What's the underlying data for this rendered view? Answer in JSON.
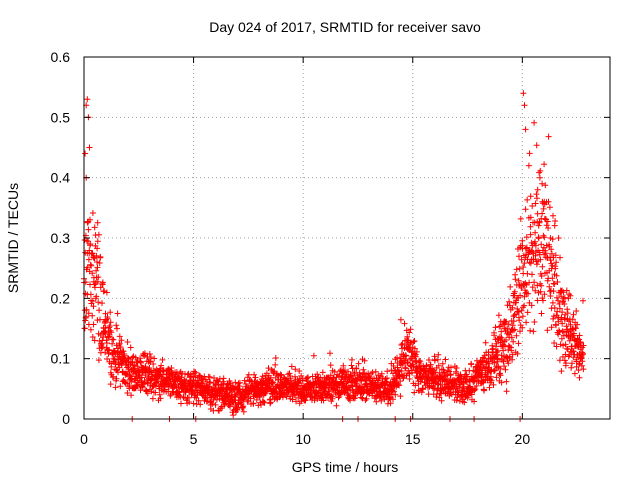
{
  "chart_data": {
    "type": "scatter",
    "title": "Day 024 of 2017, SRMTID for receiver savo",
    "xlabel": "GPS time / hours",
    "ylabel": "SRMTID / TECUs",
    "xlim": [
      0,
      24
    ],
    "ylim": [
      0,
      0.6
    ],
    "grid": true,
    "marker": "+",
    "color": "#ff0000",
    "x_ticks": [
      0,
      5,
      10,
      15,
      20
    ],
    "x_tick_labels": [
      "0",
      "5",
      "10",
      "15",
      "20"
    ],
    "y_ticks": [
      0,
      0.1,
      0.2,
      0.3,
      0.4,
      0.5,
      0.6
    ],
    "y_tick_labels": [
      "0",
      "0.1",
      "0.2",
      "0.3",
      "0.4",
      "0.5",
      "0.6"
    ],
    "series": [
      {
        "name": "SRMTID",
        "trend": {
          "x": [
            0.0,
            0.2,
            0.5,
            1.0,
            1.5,
            2.0,
            3.0,
            4.0,
            5.0,
            6.0,
            7.0,
            8.0,
            9.0,
            10.0,
            11.0,
            12.0,
            13.0,
            14.0,
            14.7,
            15.5,
            16.5,
            17.5,
            18.5,
            19.3,
            19.8,
            20.2,
            20.7,
            21.2,
            21.8,
            22.3,
            22.8
          ],
          "y": [
            0.2,
            0.26,
            0.23,
            0.15,
            0.1,
            0.08,
            0.07,
            0.06,
            0.055,
            0.045,
            0.035,
            0.05,
            0.055,
            0.05,
            0.055,
            0.06,
            0.055,
            0.05,
            0.11,
            0.07,
            0.06,
            0.055,
            0.09,
            0.13,
            0.2,
            0.26,
            0.31,
            0.27,
            0.18,
            0.12,
            0.1
          ]
        },
        "extremes": {
          "x": [
            0.05,
            0.1,
            0.15,
            0.2,
            0.25,
            0.1,
            20.05,
            20.1,
            20.15,
            20.3,
            20.7,
            20.8,
            20.9,
            21.0
          ],
          "y": [
            0.44,
            0.52,
            0.53,
            0.5,
            0.45,
            0.4,
            0.54,
            0.52,
            0.48,
            0.42,
            0.38,
            0.4,
            0.39,
            0.36
          ]
        },
        "zero_points": {
          "x": [
            2.2,
            3.9,
            5.1,
            11.8,
            12.5,
            14.2,
            14.9,
            16.7,
            17.8,
            19.9
          ],
          "y": [
            0,
            0,
            0,
            0,
            0,
            0,
            0,
            0,
            0,
            0
          ]
        }
      }
    ]
  }
}
